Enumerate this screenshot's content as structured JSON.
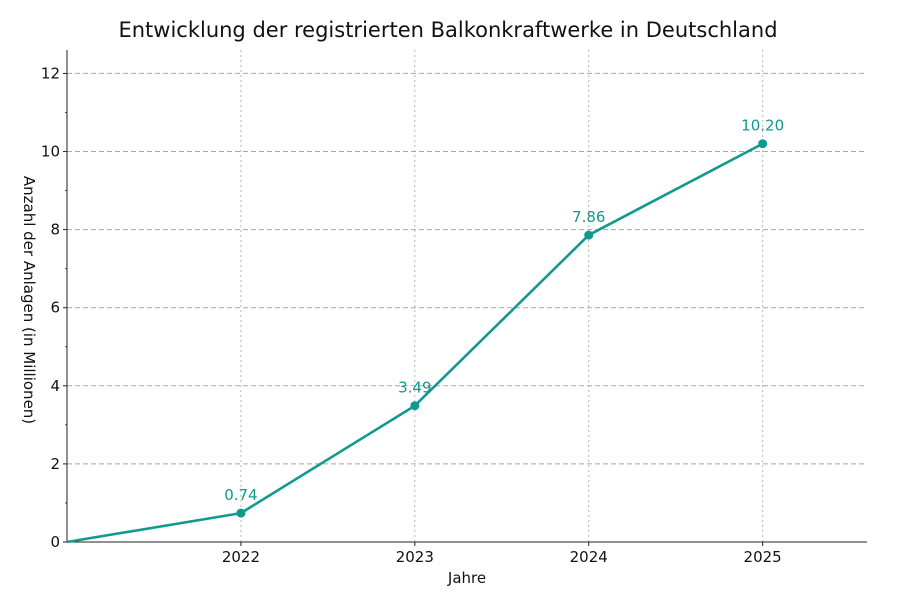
{
  "chart_data": {
    "type": "line",
    "title": "Entwicklung der registrierten Balkonkraftwerke in Deutschland",
    "xlabel": "Jahre",
    "ylabel": "Anzahl der Anlagen (in Millionen)",
    "x": [
      2021,
      2022,
      2023,
      2024,
      2025
    ],
    "x_tick_labels": [
      "2022",
      "2023",
      "2024",
      "2025"
    ],
    "x_ticks": [
      2022,
      2023,
      2024,
      2025
    ],
    "xlim": [
      2021,
      2025.6
    ],
    "ylim": [
      0,
      12.6
    ],
    "y_ticks": [
      0,
      2,
      4,
      6,
      8,
      10,
      12
    ],
    "y_tick_labels": [
      "0",
      "2",
      "4",
      "6",
      "8",
      "10",
      "12"
    ],
    "series": [
      {
        "values": [
          0,
          0.74,
          3.49,
          7.86,
          10.2
        ],
        "color": "#11998e"
      }
    ],
    "data_labels": [
      {
        "x": 2022,
        "text": "0.74"
      },
      {
        "x": 2023,
        "text": "3.49"
      },
      {
        "x": 2024,
        "text": "7.86"
      },
      {
        "x": 2025,
        "text": "10.20"
      }
    ],
    "grid": true,
    "grid_style": "dashed"
  }
}
